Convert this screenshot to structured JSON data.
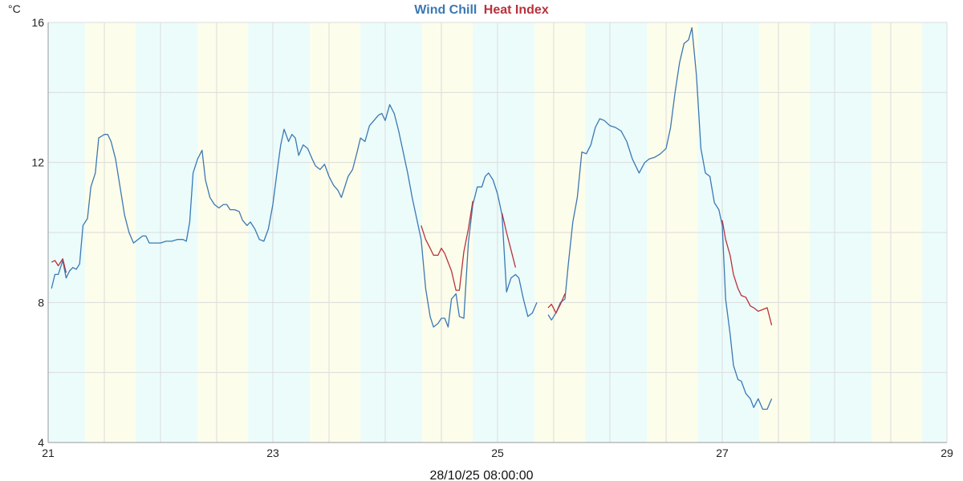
{
  "chart_data": {
    "type": "line",
    "title_parts": [
      {
        "text": "Wind Chill",
        "color": "#3b78b3"
      },
      {
        "text": "Heat Index",
        "color": "#b8323b"
      }
    ],
    "ylabel": "°C",
    "footer": "28/10/25 08:00:00",
    "xlim": [
      21,
      29
    ],
    "ylim": [
      4,
      16
    ],
    "x_ticks": [
      {
        "value": 21,
        "label": "21"
      },
      {
        "value": 23,
        "label": "23"
      },
      {
        "value": 25,
        "label": "25"
      },
      {
        "value": 27,
        "label": "27"
      },
      {
        "value": 29,
        "label": "29"
      }
    ],
    "y_ticks": [
      {
        "value": 4,
        "label": "4"
      },
      {
        "value": 8,
        "label": "8"
      },
      {
        "value": 12,
        "label": "12"
      },
      {
        "value": 16,
        "label": "16"
      }
    ],
    "grid": true,
    "day_night_bands": [
      {
        "from": 21.0,
        "to": 21.33,
        "phase": "night"
      },
      {
        "from": 21.33,
        "to": 21.78,
        "phase": "day"
      },
      {
        "from": 21.78,
        "to": 22.33,
        "phase": "night"
      },
      {
        "from": 22.33,
        "to": 22.78,
        "phase": "day"
      },
      {
        "from": 22.78,
        "to": 23.33,
        "phase": "night"
      },
      {
        "from": 23.33,
        "to": 23.78,
        "phase": "day"
      },
      {
        "from": 23.78,
        "to": 24.33,
        "phase": "night"
      },
      {
        "from": 24.33,
        "to": 24.78,
        "phase": "day"
      },
      {
        "from": 24.78,
        "to": 25.33,
        "phase": "night"
      },
      {
        "from": 25.33,
        "to": 25.78,
        "phase": "day"
      },
      {
        "from": 25.78,
        "to": 26.33,
        "phase": "night"
      },
      {
        "from": 26.33,
        "to": 26.78,
        "phase": "day"
      },
      {
        "from": 26.78,
        "to": 27.33,
        "phase": "night"
      },
      {
        "from": 27.33,
        "to": 27.78,
        "phase": "day"
      },
      {
        "from": 27.78,
        "to": 28.33,
        "phase": "night"
      },
      {
        "from": 28.33,
        "to": 28.78,
        "phase": "day"
      },
      {
        "from": 28.78,
        "to": 29.0,
        "phase": "night"
      }
    ],
    "band_colors": {
      "day": "#fdfdeb",
      "night": "#ebfcfb"
    },
    "series": [
      {
        "name": "Wind Chill",
        "color": "#3b78b3",
        "segments": [
          [
            [
              21.03,
              8.4
            ],
            [
              21.06,
              8.8
            ],
            [
              21.09,
              8.8
            ],
            [
              21.13,
              9.2
            ],
            [
              21.16,
              8.7
            ],
            [
              21.19,
              8.9
            ],
            [
              21.22,
              9.0
            ],
            [
              21.25,
              8.95
            ],
            [
              21.28,
              9.1
            ],
            [
              21.31,
              10.2
            ],
            [
              21.35,
              10.4
            ],
            [
              21.38,
              11.3
            ],
            [
              21.42,
              11.7
            ],
            [
              21.45,
              12.7
            ],
            [
              21.5,
              12.8
            ],
            [
              21.53,
              12.8
            ],
            [
              21.56,
              12.6
            ],
            [
              21.6,
              12.1
            ],
            [
              21.64,
              11.3
            ],
            [
              21.68,
              10.5
            ],
            [
              21.72,
              10.0
            ],
            [
              21.76,
              9.7
            ],
            [
              21.8,
              9.8
            ],
            [
              21.84,
              9.9
            ],
            [
              21.87,
              9.9
            ],
            [
              21.9,
              9.7
            ],
            [
              21.95,
              9.7
            ],
            [
              22.0,
              9.7
            ],
            [
              22.05,
              9.75
            ],
            [
              22.1,
              9.75
            ],
            [
              22.15,
              9.8
            ],
            [
              22.2,
              9.8
            ],
            [
              22.23,
              9.75
            ],
            [
              22.26,
              10.3
            ],
            [
              22.29,
              11.7
            ],
            [
              22.33,
              12.1
            ],
            [
              22.37,
              12.35
            ],
            [
              22.4,
              11.5
            ],
            [
              22.44,
              11.0
            ],
            [
              22.48,
              10.8
            ],
            [
              22.52,
              10.7
            ],
            [
              22.56,
              10.8
            ],
            [
              22.59,
              10.8
            ],
            [
              22.62,
              10.65
            ],
            [
              22.66,
              10.65
            ],
            [
              22.7,
              10.6
            ],
            [
              22.73,
              10.35
            ],
            [
              22.77,
              10.2
            ],
            [
              22.8,
              10.3
            ],
            [
              22.84,
              10.1
            ],
            [
              22.88,
              9.8
            ],
            [
              22.92,
              9.75
            ],
            [
              22.96,
              10.1
            ],
            [
              23.0,
              10.8
            ],
            [
              23.04,
              11.8
            ],
            [
              23.07,
              12.5
            ],
            [
              23.1,
              12.95
            ],
            [
              23.14,
              12.6
            ],
            [
              23.17,
              12.8
            ],
            [
              23.2,
              12.7
            ],
            [
              23.23,
              12.2
            ],
            [
              23.27,
              12.5
            ],
            [
              23.31,
              12.4
            ],
            [
              23.35,
              12.1
            ],
            [
              23.38,
              11.9
            ],
            [
              23.42,
              11.8
            ],
            [
              23.46,
              11.95
            ],
            [
              23.5,
              11.6
            ],
            [
              23.54,
              11.35
            ],
            [
              23.58,
              11.2
            ],
            [
              23.61,
              11.0
            ],
            [
              23.64,
              11.3
            ],
            [
              23.67,
              11.6
            ],
            [
              23.71,
              11.8
            ],
            [
              23.75,
              12.3
            ],
            [
              23.78,
              12.7
            ],
            [
              23.82,
              12.6
            ],
            [
              23.86,
              13.05
            ],
            [
              23.9,
              13.2
            ],
            [
              23.94,
              13.35
            ],
            [
              23.97,
              13.4
            ],
            [
              24.0,
              13.2
            ],
            [
              24.04,
              13.65
            ],
            [
              24.08,
              13.4
            ],
            [
              24.12,
              12.9
            ],
            [
              24.16,
              12.3
            ],
            [
              24.2,
              11.7
            ],
            [
              24.24,
              11.0
            ],
            [
              24.28,
              10.4
            ],
            [
              24.32,
              9.8
            ],
            [
              24.36,
              8.4
            ],
            [
              24.4,
              7.6
            ],
            [
              24.43,
              7.3
            ],
            [
              24.47,
              7.4
            ],
            [
              24.5,
              7.55
            ],
            [
              24.53,
              7.55
            ],
            [
              24.56,
              7.3
            ],
            [
              24.59,
              8.1
            ],
            [
              24.63,
              8.25
            ],
            [
              24.66,
              7.6
            ],
            [
              24.7,
              7.55
            ],
            [
              24.74,
              9.7
            ],
            [
              24.78,
              10.8
            ],
            [
              24.82,
              11.3
            ],
            [
              24.86,
              11.3
            ],
            [
              24.89,
              11.6
            ],
            [
              24.92,
              11.7
            ],
            [
              24.96,
              11.5
            ],
            [
              25.0,
              11.1
            ],
            [
              25.04,
              10.5
            ],
            [
              25.08,
              8.3
            ],
            [
              25.12,
              8.7
            ],
            [
              25.16,
              8.8
            ],
            [
              25.19,
              8.7
            ],
            [
              25.23,
              8.1
            ],
            [
              25.27,
              7.6
            ],
            [
              25.31,
              7.7
            ],
            [
              25.35,
              8.0
            ]
          ],
          [
            [
              25.45,
              7.65
            ],
            [
              25.48,
              7.5
            ],
            [
              25.52,
              7.7
            ],
            [
              25.56,
              8.0
            ],
            [
              25.6,
              8.1
            ],
            [
              25.63,
              9.1
            ],
            [
              25.67,
              10.3
            ],
            [
              25.71,
              11.0
            ],
            [
              25.75,
              12.3
            ],
            [
              25.79,
              12.25
            ],
            [
              25.83,
              12.5
            ],
            [
              25.87,
              13.0
            ],
            [
              25.91,
              13.25
            ],
            [
              25.95,
              13.2
            ],
            [
              26.0,
              13.05
            ],
            [
              26.05,
              13.0
            ],
            [
              26.1,
              12.9
            ],
            [
              26.15,
              12.6
            ],
            [
              26.2,
              12.1
            ],
            [
              26.26,
              11.7
            ],
            [
              26.31,
              12.0
            ],
            [
              26.35,
              12.1
            ],
            [
              26.4,
              12.15
            ],
            [
              26.45,
              12.25
            ],
            [
              26.5,
              12.4
            ],
            [
              26.54,
              13.0
            ],
            [
              26.58,
              14.0
            ],
            [
              26.62,
              14.85
            ],
            [
              26.66,
              15.4
            ],
            [
              26.7,
              15.5
            ],
            [
              26.73,
              15.85
            ],
            [
              26.77,
              14.5
            ],
            [
              26.81,
              12.4
            ],
            [
              26.85,
              11.7
            ],
            [
              26.89,
              11.6
            ],
            [
              26.93,
              10.85
            ],
            [
              26.97,
              10.65
            ],
            [
              27.0,
              10.2
            ],
            [
              27.03,
              8.1
            ],
            [
              27.07,
              7.1
            ],
            [
              27.1,
              6.2
            ],
            [
              27.14,
              5.8
            ],
            [
              27.17,
              5.75
            ],
            [
              27.21,
              5.4
            ],
            [
              27.25,
              5.25
            ],
            [
              27.28,
              5.0
            ],
            [
              27.32,
              5.25
            ],
            [
              27.36,
              4.95
            ],
            [
              27.4,
              4.95
            ],
            [
              27.44,
              5.25
            ]
          ]
        ]
      },
      {
        "name": "Heat Index",
        "color": "#b8323b",
        "segments": [
          [
            [
              21.03,
              9.15
            ],
            [
              21.06,
              9.2
            ],
            [
              21.09,
              9.05
            ],
            [
              21.13,
              9.25
            ],
            [
              21.16,
              8.85
            ]
          ],
          [
            [
              24.32,
              10.2
            ],
            [
              24.36,
              9.8
            ],
            [
              24.4,
              9.55
            ],
            [
              24.43,
              9.35
            ],
            [
              24.47,
              9.35
            ],
            [
              24.5,
              9.55
            ],
            [
              24.53,
              9.4
            ],
            [
              24.56,
              9.15
            ],
            [
              24.59,
              8.9
            ],
            [
              24.63,
              8.35
            ],
            [
              24.66,
              8.35
            ],
            [
              24.7,
              9.45
            ],
            [
              24.74,
              10.1
            ],
            [
              24.78,
              10.9
            ]
          ],
          [
            [
              25.04,
              10.55
            ],
            [
              25.08,
              10.0
            ],
            [
              25.12,
              9.5
            ],
            [
              25.16,
              9.0
            ]
          ],
          [
            [
              25.45,
              7.85
            ],
            [
              25.48,
              7.95
            ],
            [
              25.52,
              7.7
            ],
            [
              25.56,
              7.95
            ],
            [
              25.6,
              8.25
            ]
          ],
          [
            [
              27.0,
              10.35
            ],
            [
              27.03,
              9.8
            ],
            [
              27.07,
              9.35
            ],
            [
              27.1,
              8.8
            ],
            [
              27.14,
              8.4
            ],
            [
              27.17,
              8.2
            ],
            [
              27.21,
              8.15
            ],
            [
              27.25,
              7.9
            ],
            [
              27.28,
              7.85
            ],
            [
              27.32,
              7.75
            ],
            [
              27.36,
              7.8
            ],
            [
              27.4,
              7.85
            ],
            [
              27.44,
              7.35
            ]
          ]
        ]
      }
    ]
  }
}
